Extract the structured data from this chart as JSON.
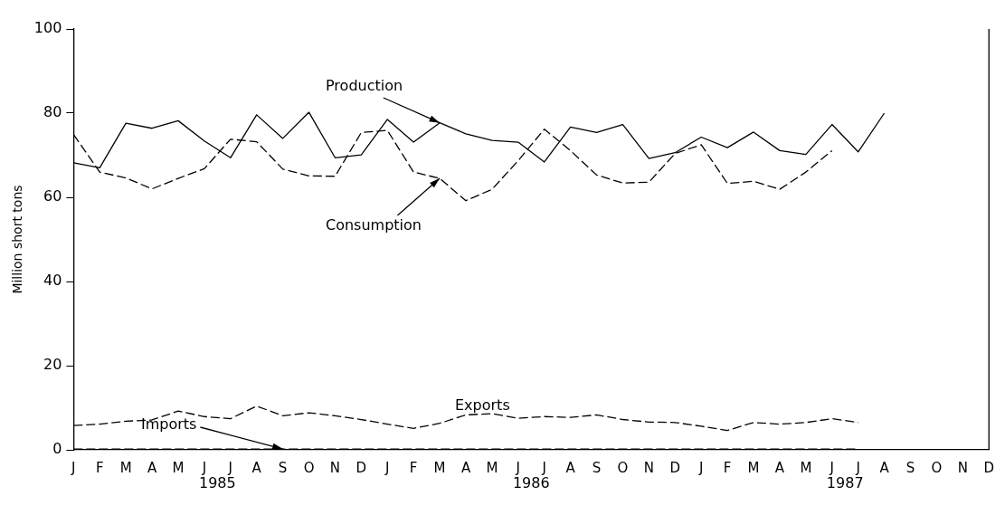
{
  "chart_data": {
    "type": "line",
    "ylabel": "Million short tons",
    "categories": [
      "J",
      "F",
      "M",
      "A",
      "M",
      "J",
      "J",
      "A",
      "S",
      "O",
      "N",
      "D",
      "J",
      "F",
      "M",
      "A",
      "M",
      "J",
      "J",
      "A",
      "S",
      "O",
      "N",
      "D",
      "J",
      "F",
      "M",
      "A",
      "M",
      "J",
      "J",
      "A",
      "S",
      "O",
      "N",
      "D"
    ],
    "annotations": [
      "1985",
      "1986",
      "1987"
    ],
    "ylim": [
      0,
      100
    ],
    "yticks": [
      0,
      20,
      40,
      60,
      80,
      100
    ],
    "grid": false,
    "legend": false,
    "marker": "none",
    "series": [
      {
        "name": "Production",
        "color": "#000000",
        "line_style": "solid",
        "values": [
          68.2,
          67.0,
          77.6,
          76.4,
          78.2,
          73.4,
          69.4,
          79.6,
          74.0,
          80.2,
          69.4,
          70.1,
          78.5,
          73.1,
          77.7,
          75.1,
          73.5,
          73.1,
          68.4,
          76.7,
          75.4,
          77.3,
          69.2,
          70.6,
          74.3,
          71.8,
          75.5,
          71.1,
          70.2,
          77.3,
          70.8,
          80.0,
          null,
          null,
          null,
          null
        ]
      },
      {
        "name": "Consumption",
        "color": "#000000",
        "line_style": "dashed",
        "values": [
          74.9,
          66.0,
          64.6,
          62.0,
          64.5,
          66.8,
          73.8,
          73.2,
          66.7,
          65.1,
          65.0,
          75.4,
          75.9,
          66.0,
          64.5,
          59.2,
          61.9,
          68.7,
          76.2,
          71.1,
          65.3,
          63.4,
          63.6,
          70.4,
          72.5,
          63.3,
          63.8,
          61.9,
          66.0,
          71.1,
          null,
          null,
          null,
          null,
          null,
          null
        ]
      },
      {
        "name": "Exports",
        "color": "#000000",
        "line_style": "dashed",
        "values": [
          5.8,
          6.1,
          6.8,
          7.1,
          9.2,
          7.9,
          7.4,
          10.4,
          8.1,
          8.8,
          8.1,
          7.2,
          6.1,
          5.1,
          6.3,
          8.3,
          8.6,
          7.5,
          7.9,
          7.7,
          8.3,
          7.2,
          6.6,
          6.5,
          5.6,
          4.6,
          6.5,
          6.1,
          6.5,
          7.4,
          6.5,
          null,
          null,
          null,
          null,
          null
        ]
      },
      {
        "name": "Imports",
        "color": "#000000",
        "line_style": "dashed",
        "values": [
          0.2,
          0.2,
          0.2,
          0.2,
          0.2,
          0.2,
          0.2,
          0.2,
          0.2,
          0.2,
          0.2,
          0.2,
          0.2,
          0.2,
          0.2,
          0.2,
          0.2,
          0.2,
          0.2,
          0.2,
          0.2,
          0.2,
          0.2,
          0.2,
          0.2,
          0.2,
          0.2,
          0.2,
          0.2,
          0.2,
          0.2,
          null,
          null,
          null,
          null,
          null
        ]
      }
    ]
  }
}
